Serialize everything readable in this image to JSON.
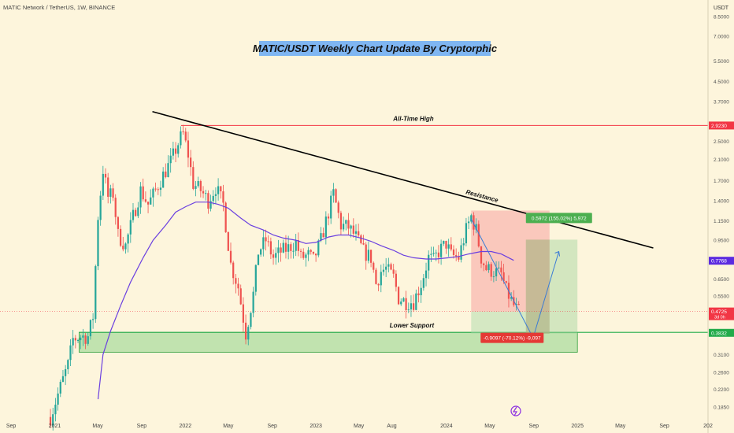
{
  "header": {
    "symbol": "MATIC Network / TetherUS, 1W, BINANCE",
    "currency": "USDT"
  },
  "chart_data": {
    "type": "candlestick",
    "title": "MATIC/USDT Weekly Chart Update By Cryptorphic",
    "y_scale": "log",
    "ylim": [
      0.165,
      10.0
    ],
    "xlim": [
      "2020-08-01",
      "2026-01-01"
    ],
    "y_ticks": [
      "8.5000",
      "7.0000",
      "5.5000",
      "4.5000",
      "3.7000",
      "2.5000",
      "2.1000",
      "1.7000",
      "1.4000",
      "1.1500",
      "0.9500",
      "0.6500",
      "0.5500",
      "0.3100",
      "0.2600",
      "0.2200",
      "0.1850"
    ],
    "y_tick_values": [
      8.5,
      7.0,
      5.5,
      4.5,
      3.7,
      2.5,
      2.1,
      1.7,
      1.4,
      1.15,
      0.95,
      0.65,
      0.55,
      0.31,
      0.26,
      0.22,
      0.185
    ],
    "x_ticks": [
      {
        "label": "Sep",
        "date": "2020-09-01"
      },
      {
        "label": "2021",
        "date": "2021-01-01"
      },
      {
        "label": "May",
        "date": "2021-05-01"
      },
      {
        "label": "Sep",
        "date": "2021-09-01"
      },
      {
        "label": "2022",
        "date": "2022-01-01"
      },
      {
        "label": "May",
        "date": "2022-05-01"
      },
      {
        "label": "Sep",
        "date": "2022-09-01"
      },
      {
        "label": "2023",
        "date": "2023-01-01"
      },
      {
        "label": "May",
        "date": "2023-05-01"
      },
      {
        "label": "Aug",
        "date": "2023-08-01"
      },
      {
        "label": "2024",
        "date": "2024-01-01"
      },
      {
        "label": "May",
        "date": "2024-05-01"
      },
      {
        "label": "Sep",
        "date": "2024-09-01"
      },
      {
        "label": "2025",
        "date": "2025-01-01"
      },
      {
        "label": "May",
        "date": "2025-05-01"
      },
      {
        "label": "Sep",
        "date": "2025-09-01"
      },
      {
        "label": "202",
        "date": "2026-01-01"
      }
    ],
    "price_anchors": [
      [
        "2020-12-20",
        0.168
      ],
      [
        "2021-01-10",
        0.21
      ],
      [
        "2021-02-07",
        0.28
      ],
      [
        "2021-02-21",
        0.36
      ],
      [
        "2021-03-14",
        0.37
      ],
      [
        "2021-04-04",
        0.37
      ],
      [
        "2021-04-18",
        0.45
      ],
      [
        "2021-05-02",
        1.2
      ],
      [
        "2021-05-16",
        1.9
      ],
      [
        "2021-05-30",
        1.45
      ],
      [
        "2021-06-13",
        1.5
      ],
      [
        "2021-06-27",
        1.0
      ],
      [
        "2021-07-18",
        0.9
      ],
      [
        "2021-08-08",
        1.2
      ],
      [
        "2021-08-29",
        1.55
      ],
      [
        "2021-09-19",
        1.35
      ],
      [
        "2021-10-10",
        1.55
      ],
      [
        "2021-10-31",
        1.8
      ],
      [
        "2021-11-21",
        2.05
      ],
      [
        "2021-12-19",
        2.6
      ],
      [
        "2021-12-26",
        2.7
      ],
      [
        "2022-01-09",
        2.2
      ],
      [
        "2022-01-23",
        1.65
      ],
      [
        "2022-02-13",
        1.55
      ],
      [
        "2022-03-06",
        1.4
      ],
      [
        "2022-03-27",
        1.6
      ],
      [
        "2022-04-17",
        1.35
      ],
      [
        "2022-05-08",
        0.75
      ],
      [
        "2022-05-29",
        0.6
      ],
      [
        "2022-06-19",
        0.38
      ],
      [
        "2022-07-10",
        0.56
      ],
      [
        "2022-07-24",
        0.85
      ],
      [
        "2022-08-14",
        0.95
      ],
      [
        "2022-09-04",
        0.8
      ],
      [
        "2022-09-25",
        0.85
      ],
      [
        "2022-10-16",
        0.88
      ],
      [
        "2022-11-06",
        0.93
      ],
      [
        "2022-11-20",
        0.8
      ],
      [
        "2022-12-11",
        0.82
      ],
      [
        "2022-12-25",
        0.78
      ],
      [
        "2023-01-15",
        0.95
      ],
      [
        "2023-02-05",
        1.25
      ],
      [
        "2023-02-19",
        1.5
      ],
      [
        "2023-03-12",
        1.1
      ],
      [
        "2023-04-02",
        1.08
      ],
      [
        "2023-04-23",
        0.98
      ],
      [
        "2023-05-14",
        0.85
      ],
      [
        "2023-06-04",
        0.8
      ],
      [
        "2023-06-18",
        0.62
      ],
      [
        "2023-07-02",
        0.7
      ],
      [
        "2023-07-16",
        0.72
      ],
      [
        "2023-08-06",
        0.66
      ],
      [
        "2023-08-20",
        0.54
      ],
      [
        "2023-09-10",
        0.52
      ],
      [
        "2023-10-01",
        0.52
      ],
      [
        "2023-10-22",
        0.62
      ],
      [
        "2023-11-12",
        0.8
      ],
      [
        "2023-11-26",
        0.78
      ],
      [
        "2023-12-10",
        0.85
      ],
      [
        "2023-12-31",
        0.92
      ],
      [
        "2024-01-14",
        0.82
      ],
      [
        "2024-02-04",
        0.8
      ],
      [
        "2024-02-25",
        1.05
      ],
      [
        "2024-03-10",
        1.2
      ],
      [
        "2024-03-24",
        1.05
      ],
      [
        "2024-04-07",
        0.8
      ],
      [
        "2024-04-21",
        0.72
      ],
      [
        "2024-05-12",
        0.7
      ],
      [
        "2024-06-02",
        0.68
      ],
      [
        "2024-06-16",
        0.58
      ],
      [
        "2024-07-07",
        0.5
      ],
      [
        "2024-07-21",
        0.47
      ]
    ],
    "moving_average": [
      [
        "2021-05-02",
        0.2
      ],
      [
        "2021-05-16",
        0.31
      ],
      [
        "2021-06-06",
        0.39
      ],
      [
        "2021-07-04",
        0.5
      ],
      [
        "2021-08-01",
        0.63
      ],
      [
        "2021-09-05",
        0.8
      ],
      [
        "2021-10-03",
        0.95
      ],
      [
        "2021-11-07",
        1.1
      ],
      [
        "2021-12-05",
        1.25
      ],
      [
        "2022-01-02",
        1.32
      ],
      [
        "2022-01-30",
        1.38
      ],
      [
        "2022-03-06",
        1.38
      ],
      [
        "2022-04-03",
        1.35
      ],
      [
        "2022-05-01",
        1.3
      ],
      [
        "2022-06-05",
        1.18
      ],
      [
        "2022-07-03",
        1.1
      ],
      [
        "2022-08-07",
        1.05
      ],
      [
        "2022-09-04",
        1.0
      ],
      [
        "2022-10-02",
        0.97
      ],
      [
        "2022-11-06",
        0.95
      ],
      [
        "2022-12-04",
        0.92
      ],
      [
        "2023-01-01",
        0.93
      ],
      [
        "2023-02-05",
        0.98
      ],
      [
        "2023-03-05",
        1.0
      ],
      [
        "2023-04-02",
        1.0
      ],
      [
        "2023-05-07",
        0.97
      ],
      [
        "2023-06-04",
        0.94
      ],
      [
        "2023-07-02",
        0.9
      ],
      [
        "2023-08-06",
        0.86
      ],
      [
        "2023-09-03",
        0.82
      ],
      [
        "2023-10-01",
        0.8
      ],
      [
        "2023-11-05",
        0.79
      ],
      [
        "2023-12-03",
        0.79
      ],
      [
        "2024-01-07",
        0.8
      ],
      [
        "2024-02-04",
        0.81
      ],
      [
        "2024-03-03",
        0.83
      ],
      [
        "2024-04-07",
        0.85
      ],
      [
        "2024-05-05",
        0.85
      ],
      [
        "2024-06-02",
        0.83
      ],
      [
        "2024-07-07",
        0.78
      ]
    ],
    "resistance_line": {
      "label": "Resistance",
      "from": [
        "2021-10-01",
        3.35
      ],
      "to": [
        "2025-08-01",
        0.88
      ]
    },
    "all_time_high": {
      "label": "All-Time High",
      "value": 2.923
    },
    "lower_support": {
      "label": "Lower Support",
      "from": 0.317,
      "to": 0.385
    },
    "position": {
      "entry_price": 0.4725,
      "stop_price": 1.27,
      "target_price": 0.38,
      "short_start": "2024-03-10",
      "short_end": "2024-10-15",
      "long_start": "2024-08-10",
      "long_end": "2025-01-01",
      "long_target": 0.955,
      "long_gain_label": "0.5972 (155.02%) 5,972",
      "short_drop_label": "-0.9097 (-70.12%) -9,097"
    },
    "projection": [
      [
        "2024-03-10",
        1.17
      ],
      [
        "2024-08-30",
        0.365
      ],
      [
        "2024-11-10",
        0.85
      ]
    ],
    "price_tags": [
      {
        "value": 2.923,
        "label": "2.9230",
        "color": "#f23645"
      },
      {
        "value": 0.7768,
        "label": "0.7768",
        "color": "#5b2be0"
      },
      {
        "value": 0.4725,
        "label": "0.4725",
        "sub": "3d 0h",
        "color": "#f23645"
      },
      {
        "value": 0.3832,
        "label": "0.3832",
        "color": "#22ab4a"
      }
    ]
  },
  "colors": {
    "background": "#fdf5dc",
    "up_candle": "#26a69a",
    "down_candle": "#ef5350",
    "moving_average": "#6a3fe0",
    "resistance": "#000000",
    "ath_line": "#f23645",
    "support_zone": "#90d48a",
    "title_bg": "#7fb6f2"
  }
}
